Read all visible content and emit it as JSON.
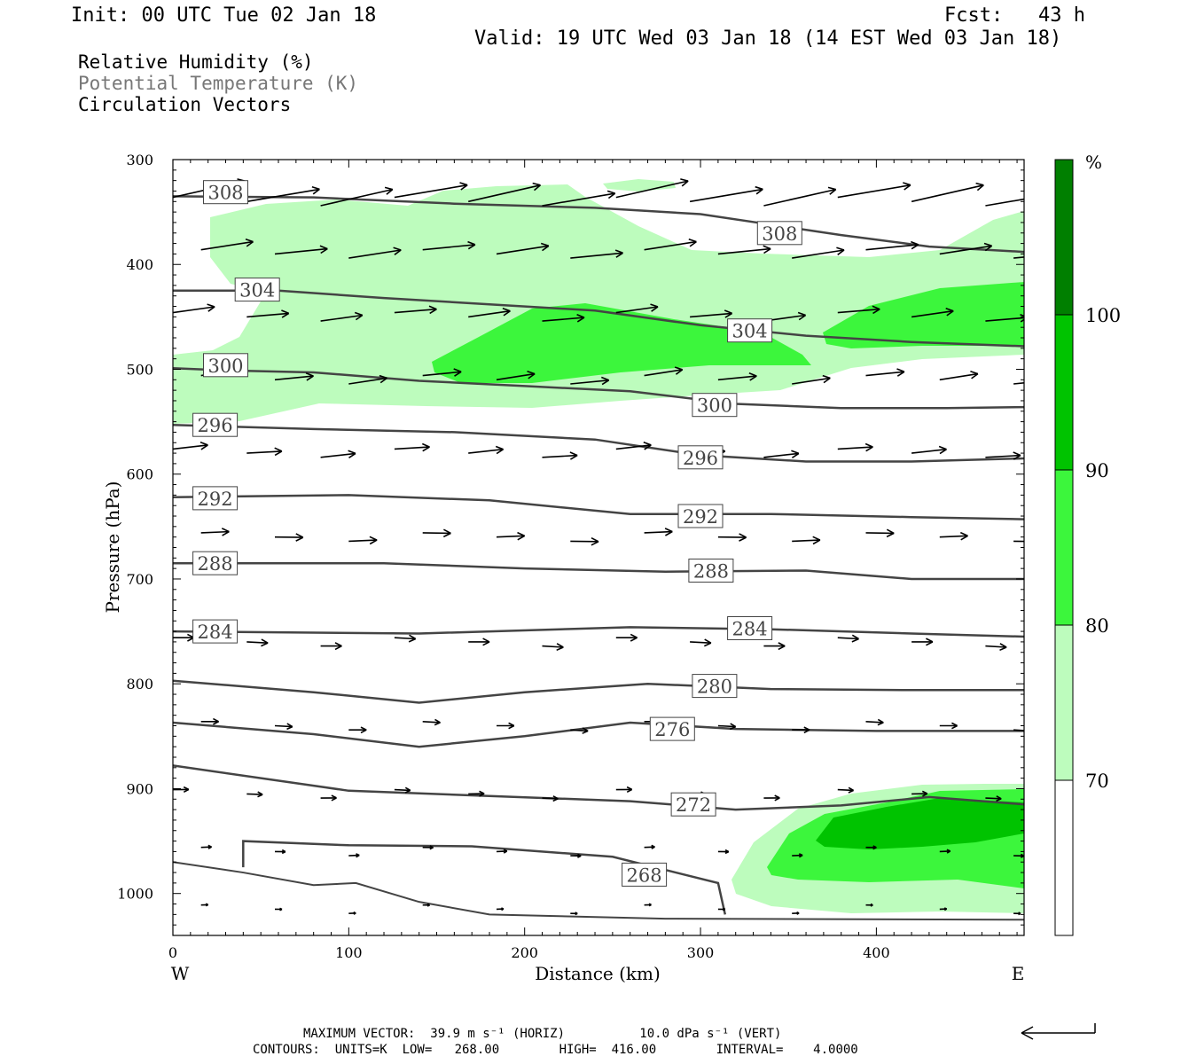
{
  "header": {
    "init": "Init: 00 UTC Tue 02 Jan 18",
    "fcst": "Fcst:   43 h",
    "valid": "Valid: 19 UTC Wed 03 Jan 18 (14 EST Wed 03 Jan 18)"
  },
  "legend": {
    "items": [
      {
        "label": "Relative Humidity (%)",
        "color": "#000000"
      },
      {
        "label": "Potential Temperature (K)",
        "color": "#777777"
      },
      {
        "label": "Circulation Vectors",
        "color": "#000000"
      }
    ]
  },
  "colorbar": {
    "unit": "%",
    "levels": [
      "70",
      "80",
      "90",
      "100"
    ],
    "colors": [
      "#ffffff",
      "#bdfcbd",
      "#3cf63c",
      "#00c300",
      "#007f00"
    ]
  },
  "footer": {
    "max_vector": "MAXIMUM VECTOR:  39.9 m s⁻¹ (HORIZ)          10.0 dPa s⁻¹ (VERT)",
    "contours": "CONTOURS:  UNITS=K  LOW=   268.00        HIGH=  416.00        INTERVAL=    4.0000"
  },
  "chart_data": {
    "type": "cross-section",
    "xlabel": "Distance (km)",
    "ylabel": "Pressure (hPa)",
    "x_ticks": [
      0,
      100,
      200,
      300,
      400
    ],
    "y_ticks": [
      300,
      400,
      500,
      600,
      700,
      800,
      900,
      1000
    ],
    "xlim": [
      0,
      484
    ],
    "ylim": [
      1040,
      300
    ],
    "x_end_labels": {
      "left": "W",
      "right": "E"
    },
    "grid": false,
    "theta_contours": [
      {
        "label": "308",
        "points": [
          [
            0,
            335
          ],
          [
            80,
            336
          ],
          [
            160,
            342
          ],
          [
            240,
            346
          ],
          [
            300,
            352
          ],
          [
            340,
            362
          ],
          [
            380,
            372
          ],
          [
            430,
            383
          ],
          [
            484,
            388
          ]
        ]
      },
      {
        "label": "304",
        "points": [
          [
            0,
            425
          ],
          [
            60,
            425
          ],
          [
            120,
            432
          ],
          [
            180,
            438
          ],
          [
            240,
            444
          ],
          [
            300,
            458
          ],
          [
            360,
            468
          ],
          [
            420,
            474
          ],
          [
            484,
            478
          ]
        ]
      },
      {
        "label": "300",
        "points": [
          [
            0,
            499
          ],
          [
            30,
            501
          ],
          [
            80,
            503
          ],
          [
            140,
            511
          ],
          [
            200,
            516
          ],
          [
            260,
            521
          ],
          [
            320,
            533
          ],
          [
            380,
            537
          ],
          [
            440,
            537
          ],
          [
            484,
            536
          ]
        ]
      },
      {
        "label": "296",
        "points": [
          [
            0,
            553
          ],
          [
            80,
            557
          ],
          [
            160,
            560
          ],
          [
            240,
            567
          ],
          [
            300,
            582
          ],
          [
            360,
            588
          ],
          [
            420,
            588
          ],
          [
            484,
            585
          ]
        ]
      },
      {
        "label": "292",
        "points": [
          [
            0,
            622
          ],
          [
            100,
            620
          ],
          [
            180,
            625
          ],
          [
            260,
            638
          ],
          [
            340,
            638
          ],
          [
            420,
            641
          ],
          [
            484,
            643
          ]
        ]
      },
      {
        "label": "288",
        "points": [
          [
            0,
            685
          ],
          [
            120,
            685
          ],
          [
            200,
            690
          ],
          [
            280,
            693
          ],
          [
            360,
            692
          ],
          [
            420,
            700
          ],
          [
            484,
            700
          ]
        ]
      },
      {
        "label": "284",
        "points": [
          [
            0,
            750
          ],
          [
            140,
            752
          ],
          [
            260,
            746
          ],
          [
            340,
            748
          ],
          [
            420,
            752
          ],
          [
            484,
            755
          ]
        ]
      },
      {
        "label": "280",
        "points": [
          [
            0,
            797
          ],
          [
            80,
            808
          ],
          [
            140,
            818
          ],
          [
            200,
            808
          ],
          [
            270,
            800
          ],
          [
            340,
            805
          ],
          [
            420,
            806
          ],
          [
            484,
            806
          ]
        ]
      },
      {
        "label": "276",
        "points": [
          [
            0,
            837
          ],
          [
            80,
            848
          ],
          [
            140,
            860
          ],
          [
            200,
            850
          ],
          [
            260,
            837
          ],
          [
            320,
            843
          ],
          [
            400,
            845
          ],
          [
            484,
            845
          ]
        ]
      },
      {
        "label": "272",
        "points": [
          [
            0,
            878
          ],
          [
            100,
            902
          ],
          [
            180,
            907
          ],
          [
            260,
            912
          ],
          [
            320,
            920
          ],
          [
            380,
            916
          ],
          [
            430,
            908
          ],
          [
            484,
            915
          ]
        ]
      },
      {
        "label": "268",
        "points": [
          [
            40,
            975
          ],
          [
            40,
            950
          ],
          [
            100,
            954
          ],
          [
            170,
            955
          ],
          [
            250,
            965
          ],
          [
            310,
            990
          ],
          [
            314,
            1020
          ]
        ]
      }
    ],
    "rh_regions": [
      {
        "min_rh": 70,
        "description": "broad band 340-520 hPa, 0-484 km; lower-right 900-1020 hPa, 320-484 km"
      },
      {
        "min_rh": 80,
        "description": "450-520 hPa, 150-360 km; 450-480 hPa, 370-484 km; 940-1000 hPa, 340-484 km"
      },
      {
        "min_rh": 90,
        "description": "930-980 hPa, 370-484 km"
      }
    ]
  }
}
